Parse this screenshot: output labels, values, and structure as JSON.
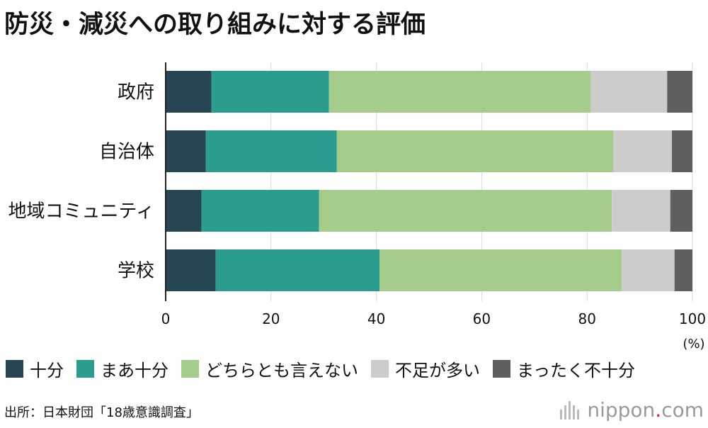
{
  "title": "防災・減災への取り組みに対する評価",
  "chart_data": {
    "type": "bar",
    "orientation": "horizontal",
    "stacked": true,
    "categories": [
      "政府",
      "自治体",
      "地域コミュニティ",
      "学校"
    ],
    "series": [
      {
        "name": "十分",
        "color": "#264653",
        "values": [
          8.7,
          7.6,
          6.8,
          9.5
        ]
      },
      {
        "name": "まあ十分",
        "color": "#2a9d8f",
        "values": [
          22.3,
          24.9,
          22.3,
          31.1
        ]
      },
      {
        "name": "どちらとも言えない",
        "color": "#a5cc8a",
        "values": [
          49.7,
          52.5,
          55.6,
          46.0
        ]
      },
      {
        "name": "不足が多い",
        "color": "#cccccc",
        "values": [
          14.5,
          11.1,
          11.1,
          10.0
        ]
      },
      {
        "name": "まったく不十分",
        "color": "#5f5f5f",
        "values": [
          4.8,
          3.9,
          4.2,
          3.4
        ]
      }
    ],
    "xlim": [
      0,
      100
    ],
    "xticks": [
      "0",
      "20",
      "40",
      "60",
      "80",
      "100"
    ],
    "xunit": "(%)",
    "grid": true,
    "legend_position": "bottom"
  },
  "source": "出所：日本財団「18歳意識調査」",
  "brand": {
    "name": "nippon",
    "dot": ".",
    "suffix": "com"
  }
}
